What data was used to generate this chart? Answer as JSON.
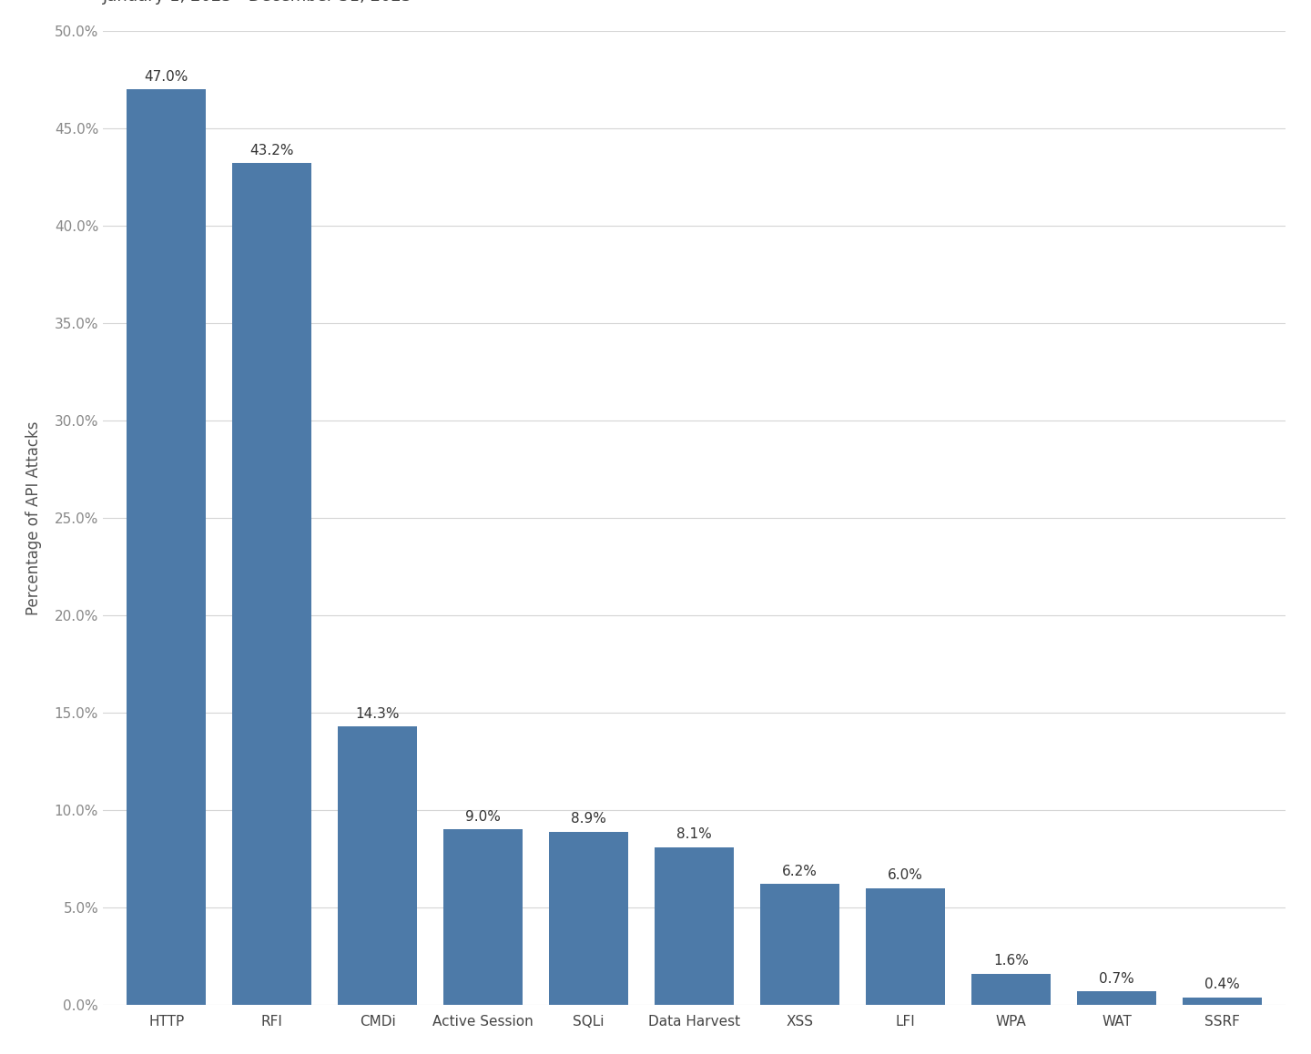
{
  "categories": [
    "HTTP",
    "RFI",
    "CMDi",
    "Active Session",
    "SQLi",
    "Data Harvest",
    "XSS",
    "LFI",
    "WPA",
    "WAT",
    "SSRF"
  ],
  "values": [
    47.0,
    43.2,
    14.3,
    9.0,
    8.9,
    8.1,
    6.2,
    6.0,
    1.6,
    0.7,
    0.4
  ],
  "bar_color": "#4d7aa8",
  "ylabel": "Percentage of API Attacks",
  "ylim": [
    0,
    50
  ],
  "yticks": [
    0,
    5,
    10,
    15,
    20,
    25,
    30,
    35,
    40,
    45,
    50
  ],
  "background_color": "#ffffff",
  "grid_color": "#d5d5d5",
  "title_fontsize": 22,
  "subtitle_fontsize": 13,
  "ylabel_fontsize": 12,
  "tick_fontsize": 11,
  "bar_label_fontsize": 11,
  "bar_width": 0.75
}
